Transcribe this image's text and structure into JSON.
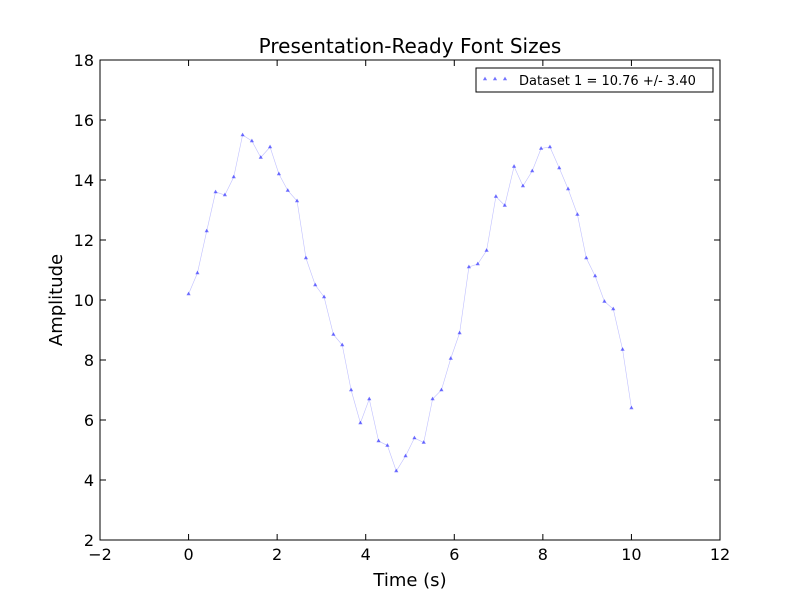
{
  "chart_data": {
    "type": "line",
    "title": "Presentation-Ready Font Sizes",
    "xlabel": "Time (s)",
    "ylabel": "Amplitude",
    "xlim": [
      -2,
      12
    ],
    "ylim": [
      2,
      18
    ],
    "xticks": [
      -2,
      0,
      2,
      4,
      6,
      8,
      10,
      12
    ],
    "yticks": [
      2,
      4,
      6,
      8,
      10,
      12,
      14,
      16,
      18
    ],
    "xtick_labels": [
      "−2",
      "0",
      "2",
      "4",
      "6",
      "8",
      "10",
      "12"
    ],
    "ytick_labels": [
      "2",
      "4",
      "6",
      "8",
      "10",
      "12",
      "14",
      "16",
      "18"
    ],
    "grid": false,
    "legend_position": "top-right",
    "marker": "triangle-up",
    "line_color": "#0000ff",
    "series": [
      {
        "name": "Dataset 1 = 10.76 +/- 3.40",
        "x": [
          0,
          0.2,
          0.41,
          0.61,
          0.82,
          1.02,
          1.22,
          1.43,
          1.63,
          1.84,
          2.04,
          2.24,
          2.45,
          2.65,
          2.86,
          3.06,
          3.27,
          3.47,
          3.67,
          3.88,
          4.08,
          4.29,
          4.49,
          4.69,
          4.9,
          5.1,
          5.31,
          5.51,
          5.71,
          5.92,
          6.12,
          6.33,
          6.53,
          6.73,
          6.94,
          7.14,
          7.35,
          7.55,
          7.76,
          7.96,
          8.16,
          8.37,
          8.57,
          8.78,
          8.98,
          9.18,
          9.39,
          9.59,
          9.8,
          10.0
        ],
        "y": [
          10.2,
          10.9,
          12.3,
          13.6,
          13.5,
          14.1,
          15.5,
          15.3,
          14.75,
          15.1,
          14.2,
          13.65,
          13.3,
          11.4,
          10.5,
          10.1,
          8.85,
          8.5,
          7.0,
          5.9,
          6.7,
          5.3,
          5.15,
          4.3,
          4.8,
          5.4,
          5.25,
          6.7,
          7.0,
          8.05,
          8.9,
          11.1,
          11.2,
          11.65,
          13.45,
          13.15,
          14.45,
          13.8,
          14.3,
          15.05,
          15.1,
          14.4,
          13.7,
          12.85,
          11.4,
          10.8,
          9.95,
          9.7,
          8.35,
          6.4
        ]
      }
    ]
  }
}
